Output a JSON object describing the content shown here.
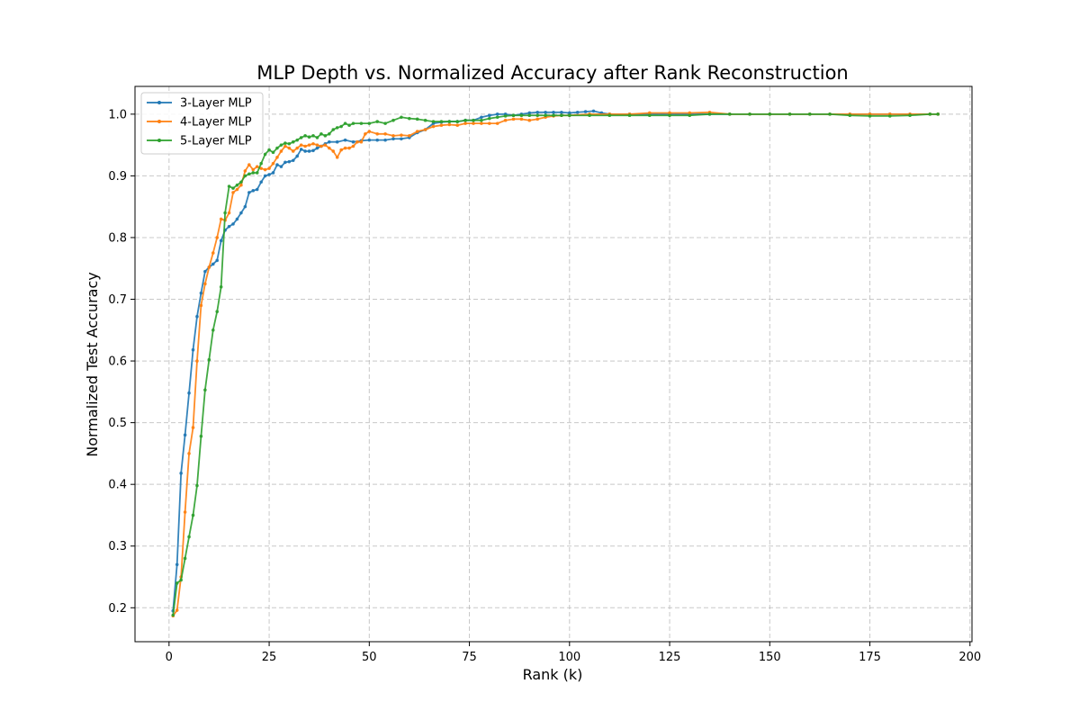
{
  "chart_data": {
    "type": "line",
    "title": "MLP Depth vs. Normalized Accuracy after Rank Reconstruction",
    "xlabel": "Rank (k)",
    "ylabel": "Normalized Test Accuracy",
    "xlim": [
      -8.5,
      200.5
    ],
    "ylim": [
      0.145,
      1.045
    ],
    "xticks": [
      0,
      25,
      50,
      75,
      100,
      125,
      150,
      175,
      200
    ],
    "yticks": [
      0.2,
      0.3,
      0.4,
      0.5,
      0.6,
      0.7,
      0.8,
      0.9,
      1.0
    ],
    "ytick_labels": [
      "0.2",
      "0.3",
      "0.4",
      "0.5",
      "0.6",
      "0.7",
      "0.8",
      "0.9",
      "1.0"
    ],
    "grid": true,
    "legend": "top-left",
    "series": [
      {
        "name": "3-Layer MLP",
        "color": "#1f77b4",
        "points": [
          [
            1,
            0.195
          ],
          [
            2,
            0.27
          ],
          [
            3,
            0.418
          ],
          [
            4,
            0.48
          ],
          [
            5,
            0.548
          ],
          [
            6,
            0.618
          ],
          [
            7,
            0.672
          ],
          [
            8,
            0.71
          ],
          [
            9,
            0.745
          ],
          [
            10,
            0.752
          ],
          [
            11,
            0.757
          ],
          [
            12,
            0.763
          ],
          [
            13,
            0.795
          ],
          [
            14,
            0.812
          ],
          [
            15,
            0.818
          ],
          [
            16,
            0.822
          ],
          [
            17,
            0.83
          ],
          [
            18,
            0.84
          ],
          [
            19,
            0.85
          ],
          [
            20,
            0.873
          ],
          [
            21,
            0.876
          ],
          [
            22,
            0.878
          ],
          [
            23,
            0.89
          ],
          [
            24,
            0.9
          ],
          [
            25,
            0.902
          ],
          [
            26,
            0.905
          ],
          [
            27,
            0.918
          ],
          [
            28,
            0.915
          ],
          [
            29,
            0.922
          ],
          [
            30,
            0.923
          ],
          [
            31,
            0.925
          ],
          [
            32,
            0.932
          ],
          [
            33,
            0.943
          ],
          [
            34,
            0.94
          ],
          [
            35,
            0.94
          ],
          [
            36,
            0.941
          ],
          [
            37,
            0.945
          ],
          [
            38,
            0.948
          ],
          [
            39,
            0.952
          ],
          [
            40,
            0.955
          ],
          [
            42,
            0.955
          ],
          [
            44,
            0.958
          ],
          [
            46,
            0.955
          ],
          [
            48,
            0.957
          ],
          [
            50,
            0.958
          ],
          [
            52,
            0.958
          ],
          [
            54,
            0.958
          ],
          [
            56,
            0.96
          ],
          [
            58,
            0.96
          ],
          [
            60,
            0.962
          ],
          [
            62,
            0.97
          ],
          [
            64,
            0.975
          ],
          [
            66,
            0.985
          ],
          [
            68,
            0.987
          ],
          [
            70,
            0.988
          ],
          [
            72,
            0.988
          ],
          [
            74,
            0.99
          ],
          [
            76,
            0.99
          ],
          [
            78,
            0.995
          ],
          [
            80,
            0.998
          ],
          [
            82,
            1.0
          ],
          [
            84,
            1.0
          ],
          [
            86,
            0.998
          ],
          [
            88,
            1.0
          ],
          [
            90,
            1.002
          ],
          [
            92,
            1.003
          ],
          [
            94,
            1.003
          ],
          [
            96,
            1.003
          ],
          [
            98,
            1.003
          ],
          [
            100,
            1.002
          ],
          [
            102,
            1.003
          ],
          [
            104,
            1.004
          ],
          [
            106,
            1.005
          ],
          [
            108,
            1.002
          ],
          [
            110,
            1.0
          ],
          [
            115,
            1.0
          ],
          [
            120,
            1.0
          ],
          [
            125,
            1.0
          ],
          [
            130,
            1.0
          ],
          [
            135,
            1.0
          ],
          [
            140,
            1.0
          ],
          [
            145,
            1.0
          ],
          [
            150,
            1.0
          ],
          [
            155,
            1.0
          ],
          [
            160,
            1.0
          ],
          [
            165,
            1.0
          ],
          [
            170,
            1.0
          ],
          [
            175,
            1.0
          ],
          [
            180,
            1.0
          ],
          [
            185,
            1.0
          ],
          [
            190,
            1.0
          ],
          [
            192,
            1.0
          ]
        ]
      },
      {
        "name": "4-Layer MLP",
        "color": "#ff7f0e",
        "points": [
          [
            1,
            0.187
          ],
          [
            2,
            0.196
          ],
          [
            3,
            0.25
          ],
          [
            4,
            0.355
          ],
          [
            5,
            0.45
          ],
          [
            6,
            0.492
          ],
          [
            7,
            0.6
          ],
          [
            8,
            0.69
          ],
          [
            9,
            0.725
          ],
          [
            10,
            0.752
          ],
          [
            11,
            0.775
          ],
          [
            12,
            0.8
          ],
          [
            13,
            0.83
          ],
          [
            14,
            0.828
          ],
          [
            15,
            0.84
          ],
          [
            16,
            0.873
          ],
          [
            17,
            0.878
          ],
          [
            18,
            0.885
          ],
          [
            19,
            0.908
          ],
          [
            20,
            0.918
          ],
          [
            21,
            0.91
          ],
          [
            22,
            0.915
          ],
          [
            23,
            0.912
          ],
          [
            24,
            0.91
          ],
          [
            25,
            0.912
          ],
          [
            26,
            0.92
          ],
          [
            27,
            0.93
          ],
          [
            28,
            0.94
          ],
          [
            29,
            0.948
          ],
          [
            30,
            0.945
          ],
          [
            31,
            0.94
          ],
          [
            32,
            0.945
          ],
          [
            33,
            0.95
          ],
          [
            34,
            0.948
          ],
          [
            35,
            0.95
          ],
          [
            36,
            0.952
          ],
          [
            37,
            0.95
          ],
          [
            38,
            0.948
          ],
          [
            39,
            0.95
          ],
          [
            40,
            0.945
          ],
          [
            41,
            0.94
          ],
          [
            42,
            0.93
          ],
          [
            43,
            0.942
          ],
          [
            44,
            0.945
          ],
          [
            45,
            0.945
          ],
          [
            46,
            0.948
          ],
          [
            47,
            0.955
          ],
          [
            48,
            0.955
          ],
          [
            49,
            0.968
          ],
          [
            50,
            0.972
          ],
          [
            52,
            0.968
          ],
          [
            54,
            0.968
          ],
          [
            56,
            0.965
          ],
          [
            58,
            0.966
          ],
          [
            60,
            0.965
          ],
          [
            62,
            0.972
          ],
          [
            64,
            0.975
          ],
          [
            66,
            0.98
          ],
          [
            68,
            0.982
          ],
          [
            70,
            0.983
          ],
          [
            72,
            0.982
          ],
          [
            74,
            0.985
          ],
          [
            76,
            0.985
          ],
          [
            78,
            0.985
          ],
          [
            80,
            0.985
          ],
          [
            82,
            0.985
          ],
          [
            84,
            0.99
          ],
          [
            86,
            0.992
          ],
          [
            88,
            0.992
          ],
          [
            90,
            0.99
          ],
          [
            92,
            0.992
          ],
          [
            94,
            0.995
          ],
          [
            96,
            0.997
          ],
          [
            98,
            0.998
          ],
          [
            100,
            0.998
          ],
          [
            105,
            1.0
          ],
          [
            110,
            1.0
          ],
          [
            115,
            1.0
          ],
          [
            120,
            1.002
          ],
          [
            125,
            1.002
          ],
          [
            130,
            1.002
          ],
          [
            135,
            1.003
          ],
          [
            140,
            1.0
          ],
          [
            145,
            1.0
          ],
          [
            150,
            1.0
          ],
          [
            155,
            1.0
          ],
          [
            160,
            1.0
          ],
          [
            165,
            1.0
          ],
          [
            170,
            1.0
          ],
          [
            175,
            1.0
          ],
          [
            180,
            1.0
          ],
          [
            185,
            1.0
          ],
          [
            190,
            1.0
          ],
          [
            192,
            1.0
          ]
        ]
      },
      {
        "name": "5-Layer MLP",
        "color": "#2ca02c",
        "points": [
          [
            1,
            0.188
          ],
          [
            2,
            0.24
          ],
          [
            3,
            0.245
          ],
          [
            4,
            0.28
          ],
          [
            5,
            0.315
          ],
          [
            6,
            0.35
          ],
          [
            7,
            0.398
          ],
          [
            8,
            0.478
          ],
          [
            9,
            0.553
          ],
          [
            10,
            0.602
          ],
          [
            11,
            0.65
          ],
          [
            12,
            0.68
          ],
          [
            13,
            0.72
          ],
          [
            14,
            0.84
          ],
          [
            15,
            0.883
          ],
          [
            16,
            0.88
          ],
          [
            17,
            0.885
          ],
          [
            18,
            0.89
          ],
          [
            19,
            0.9
          ],
          [
            20,
            0.903
          ],
          [
            21,
            0.905
          ],
          [
            22,
            0.905
          ],
          [
            23,
            0.92
          ],
          [
            24,
            0.935
          ],
          [
            25,
            0.942
          ],
          [
            26,
            0.938
          ],
          [
            27,
            0.945
          ],
          [
            28,
            0.95
          ],
          [
            29,
            0.953
          ],
          [
            30,
            0.952
          ],
          [
            31,
            0.955
          ],
          [
            32,
            0.958
          ],
          [
            33,
            0.962
          ],
          [
            34,
            0.965
          ],
          [
            35,
            0.963
          ],
          [
            36,
            0.965
          ],
          [
            37,
            0.962
          ],
          [
            38,
            0.968
          ],
          [
            39,
            0.965
          ],
          [
            40,
            0.968
          ],
          [
            41,
            0.975
          ],
          [
            42,
            0.978
          ],
          [
            43,
            0.98
          ],
          [
            44,
            0.985
          ],
          [
            45,
            0.982
          ],
          [
            46,
            0.985
          ],
          [
            48,
            0.985
          ],
          [
            50,
            0.985
          ],
          [
            52,
            0.988
          ],
          [
            54,
            0.985
          ],
          [
            56,
            0.99
          ],
          [
            58,
            0.995
          ],
          [
            60,
            0.993
          ],
          [
            62,
            0.992
          ],
          [
            64,
            0.99
          ],
          [
            66,
            0.988
          ],
          [
            68,
            0.988
          ],
          [
            70,
            0.988
          ],
          [
            72,
            0.988
          ],
          [
            74,
            0.99
          ],
          [
            76,
            0.99
          ],
          [
            78,
            0.99
          ],
          [
            80,
            0.993
          ],
          [
            82,
            0.995
          ],
          [
            84,
            0.997
          ],
          [
            86,
            0.998
          ],
          [
            88,
            0.998
          ],
          [
            90,
            0.998
          ],
          [
            92,
            0.998
          ],
          [
            94,
            0.998
          ],
          [
            96,
            0.998
          ],
          [
            98,
            0.998
          ],
          [
            100,
            0.998
          ],
          [
            105,
            0.998
          ],
          [
            110,
            0.998
          ],
          [
            115,
            0.998
          ],
          [
            120,
            0.998
          ],
          [
            125,
            0.998
          ],
          [
            130,
            0.998
          ],
          [
            135,
            1.0
          ],
          [
            140,
            1.0
          ],
          [
            145,
            1.0
          ],
          [
            150,
            1.0
          ],
          [
            155,
            1.0
          ],
          [
            160,
            1.0
          ],
          [
            165,
            1.0
          ],
          [
            170,
            0.998
          ],
          [
            175,
            0.997
          ],
          [
            180,
            0.997
          ],
          [
            185,
            0.998
          ],
          [
            190,
            1.0
          ],
          [
            192,
            1.0
          ]
        ]
      }
    ]
  }
}
